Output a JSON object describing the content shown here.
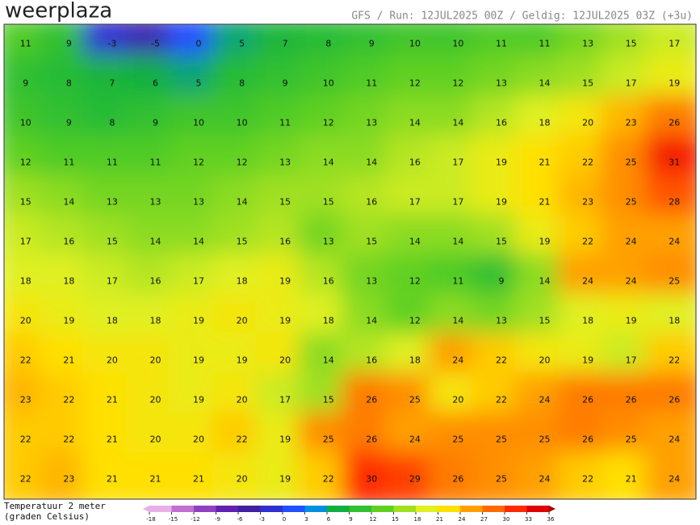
{
  "header": {
    "logo": "weerplaza",
    "info": "GFS / Run: 12JUL2025 00Z / Geldig: 12JUL2025 03Z (+3u)"
  },
  "map": {
    "rows": [
      [
        11,
        9,
        -3,
        -5,
        0,
        5,
        7,
        8,
        9,
        10,
        10,
        11,
        11,
        13,
        15,
        17
      ],
      [
        9,
        8,
        7,
        6,
        5,
        8,
        9,
        10,
        11,
        12,
        12,
        13,
        14,
        15,
        17,
        19
      ],
      [
        10,
        9,
        8,
        9,
        10,
        10,
        11,
        12,
        13,
        14,
        14,
        16,
        18,
        20,
        23,
        26
      ],
      [
        12,
        11,
        11,
        11,
        12,
        12,
        13,
        14,
        14,
        16,
        17,
        19,
        21,
        22,
        25,
        31
      ],
      [
        15,
        14,
        13,
        13,
        13,
        14,
        15,
        15,
        16,
        17,
        17,
        19,
        21,
        23,
        25,
        28
      ],
      [
        17,
        16,
        15,
        14,
        14,
        15,
        16,
        13,
        15,
        14,
        14,
        15,
        19,
        22,
        24,
        24
      ],
      [
        18,
        18,
        17,
        16,
        17,
        18,
        19,
        16,
        13,
        12,
        11,
        9,
        14,
        24,
        24,
        25
      ],
      [
        20,
        19,
        18,
        18,
        19,
        20,
        19,
        18,
        14,
        12,
        14,
        13,
        15,
        18,
        19,
        18
      ],
      [
        22,
        21,
        20,
        20,
        19,
        19,
        20,
        14,
        16,
        18,
        24,
        22,
        20,
        19,
        17,
        22
      ],
      [
        23,
        22,
        21,
        20,
        19,
        20,
        17,
        15,
        26,
        25,
        20,
        22,
        24,
        26,
        26,
        26
      ],
      [
        22,
        22,
        21,
        20,
        20,
        22,
        19,
        25,
        26,
        24,
        25,
        25,
        25,
        26,
        25,
        24
      ],
      [
        22,
        23,
        21,
        21,
        21,
        20,
        19,
        22,
        30,
        29,
        26,
        25,
        24,
        22,
        21,
        24
      ]
    ]
  },
  "legend": {
    "title_line1": "Temperatuur 2 meter",
    "title_line2": "(graden Celsius)",
    "ticks": [
      -18,
      -15,
      -12,
      -9,
      -6,
      -3,
      0,
      3,
      6,
      9,
      12,
      15,
      18,
      21,
      24,
      27,
      30,
      33,
      36
    ],
    "colors": [
      "#e8b0e8",
      "#c070d0",
      "#9040c0",
      "#6020b0",
      "#4020a0",
      "#3030d0",
      "#2050ff",
      "#0090e0",
      "#10b040",
      "#30c030",
      "#60d020",
      "#a0e020",
      "#e0f020",
      "#ffe000",
      "#ffa000",
      "#ff6a00",
      "#ff2a00",
      "#e00000",
      "#a00000"
    ]
  }
}
